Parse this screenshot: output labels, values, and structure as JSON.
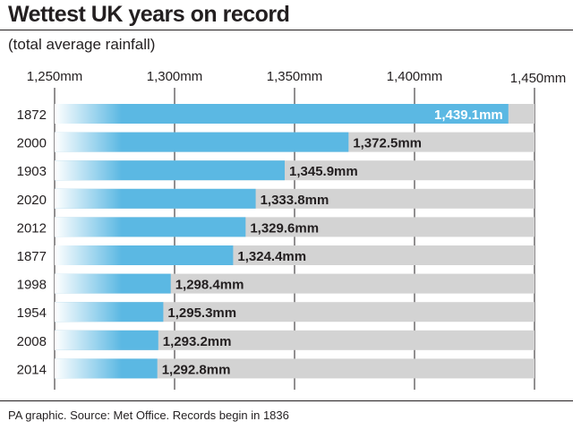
{
  "header": {
    "title": "Wettest UK years on record",
    "subtitle": "(total average rainfall)"
  },
  "footer": {
    "source": "PA graphic. Source: Met Office. Records begin in 1836"
  },
  "colors": {
    "bar": "#5bb8e3",
    "track": "#d3d3d3",
    "text": "#231f20",
    "inside_label": "#ffffff"
  },
  "chart_data": {
    "type": "bar",
    "orientation": "horizontal",
    "title": "Wettest UK years on record",
    "subtitle": "(total average rainfall)",
    "unit": "mm",
    "xlim": [
      1250,
      1450
    ],
    "ticks": [
      1250,
      1300,
      1350,
      1400,
      1450
    ],
    "tick_labels": [
      "1,250mm",
      "1,300mm",
      "1,350mm",
      "1,400mm",
      "1,450mm"
    ],
    "grid": true,
    "categories": [
      "1872",
      "2000",
      "1903",
      "2020",
      "2012",
      "1877",
      "1998",
      "1954",
      "2008",
      "2014"
    ],
    "values": [
      1439.1,
      1372.5,
      1345.9,
      1333.8,
      1329.6,
      1324.4,
      1298.4,
      1295.3,
      1293.2,
      1292.8
    ],
    "value_labels": [
      "1,439.1mm",
      "1,372.5mm",
      "1,345.9mm",
      "1,333.8mm",
      "1,329.6mm",
      "1,324.4mm",
      "1,298.4mm",
      "1,295.3mm",
      "1,293.2mm",
      "1,292.8mm"
    ]
  }
}
